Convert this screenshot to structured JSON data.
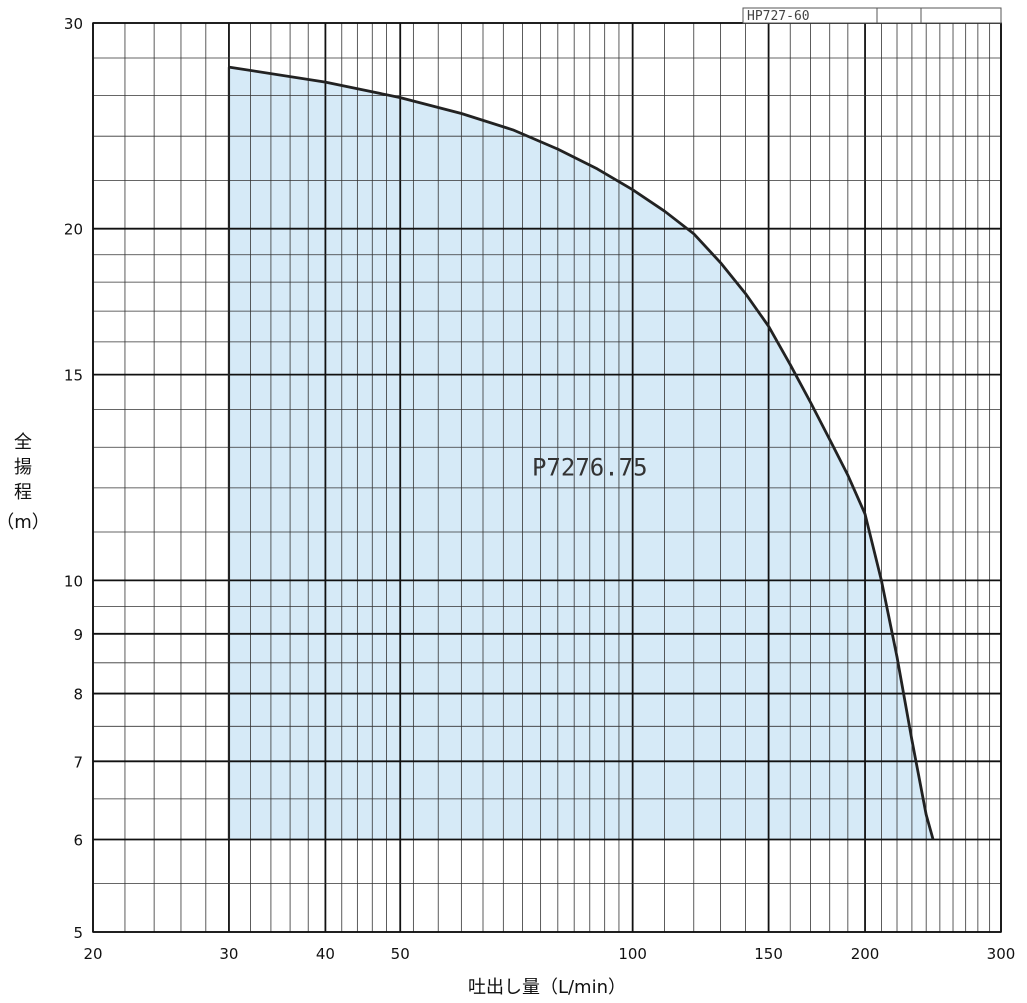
{
  "chart_data": {
    "type": "area",
    "xlabel": "吐出し量（L/min）",
    "ylabel_chars": [
      "全",
      "揚",
      "程"
    ],
    "ylabel_unit": "（m）",
    "x_scale": "log",
    "y_scale": "log",
    "xlim": [
      20,
      300
    ],
    "ylim": [
      5,
      30
    ],
    "x_ticks": [
      20,
      30,
      40,
      50,
      100,
      150,
      200,
      300
    ],
    "y_ticks": [
      5,
      6,
      7,
      8,
      9,
      10,
      15,
      20,
      30
    ],
    "grid": true,
    "fill_color": "#d6eaf7",
    "curve_color": "#222222",
    "code_box": [
      "HP727-60",
      "",
      ""
    ],
    "series": [
      {
        "name": "P7276.75",
        "min_head": 6,
        "curve": [
          {
            "x": 30,
            "y": 27.5
          },
          {
            "x": 40,
            "y": 26.7
          },
          {
            "x": 50,
            "y": 25.9
          },
          {
            "x": 60,
            "y": 25.1
          },
          {
            "x": 70,
            "y": 24.3
          },
          {
            "x": 80,
            "y": 23.4
          },
          {
            "x": 90,
            "y": 22.5
          },
          {
            "x": 100,
            "y": 21.6
          },
          {
            "x": 110,
            "y": 20.7
          },
          {
            "x": 120,
            "y": 19.8
          },
          {
            "x": 130,
            "y": 18.7
          },
          {
            "x": 140,
            "y": 17.6
          },
          {
            "x": 150,
            "y": 16.5
          },
          {
            "x": 160,
            "y": 15.3
          },
          {
            "x": 170,
            "y": 14.2
          },
          {
            "x": 180,
            "y": 13.2
          },
          {
            "x": 190,
            "y": 12.3
          },
          {
            "x": 200,
            "y": 11.4
          },
          {
            "x": 210,
            "y": 10.0
          },
          {
            "x": 220,
            "y": 8.6
          },
          {
            "x": 230,
            "y": 7.3
          },
          {
            "x": 240,
            "y": 6.3
          },
          {
            "x": 245,
            "y": 6.0
          }
        ]
      }
    ]
  }
}
